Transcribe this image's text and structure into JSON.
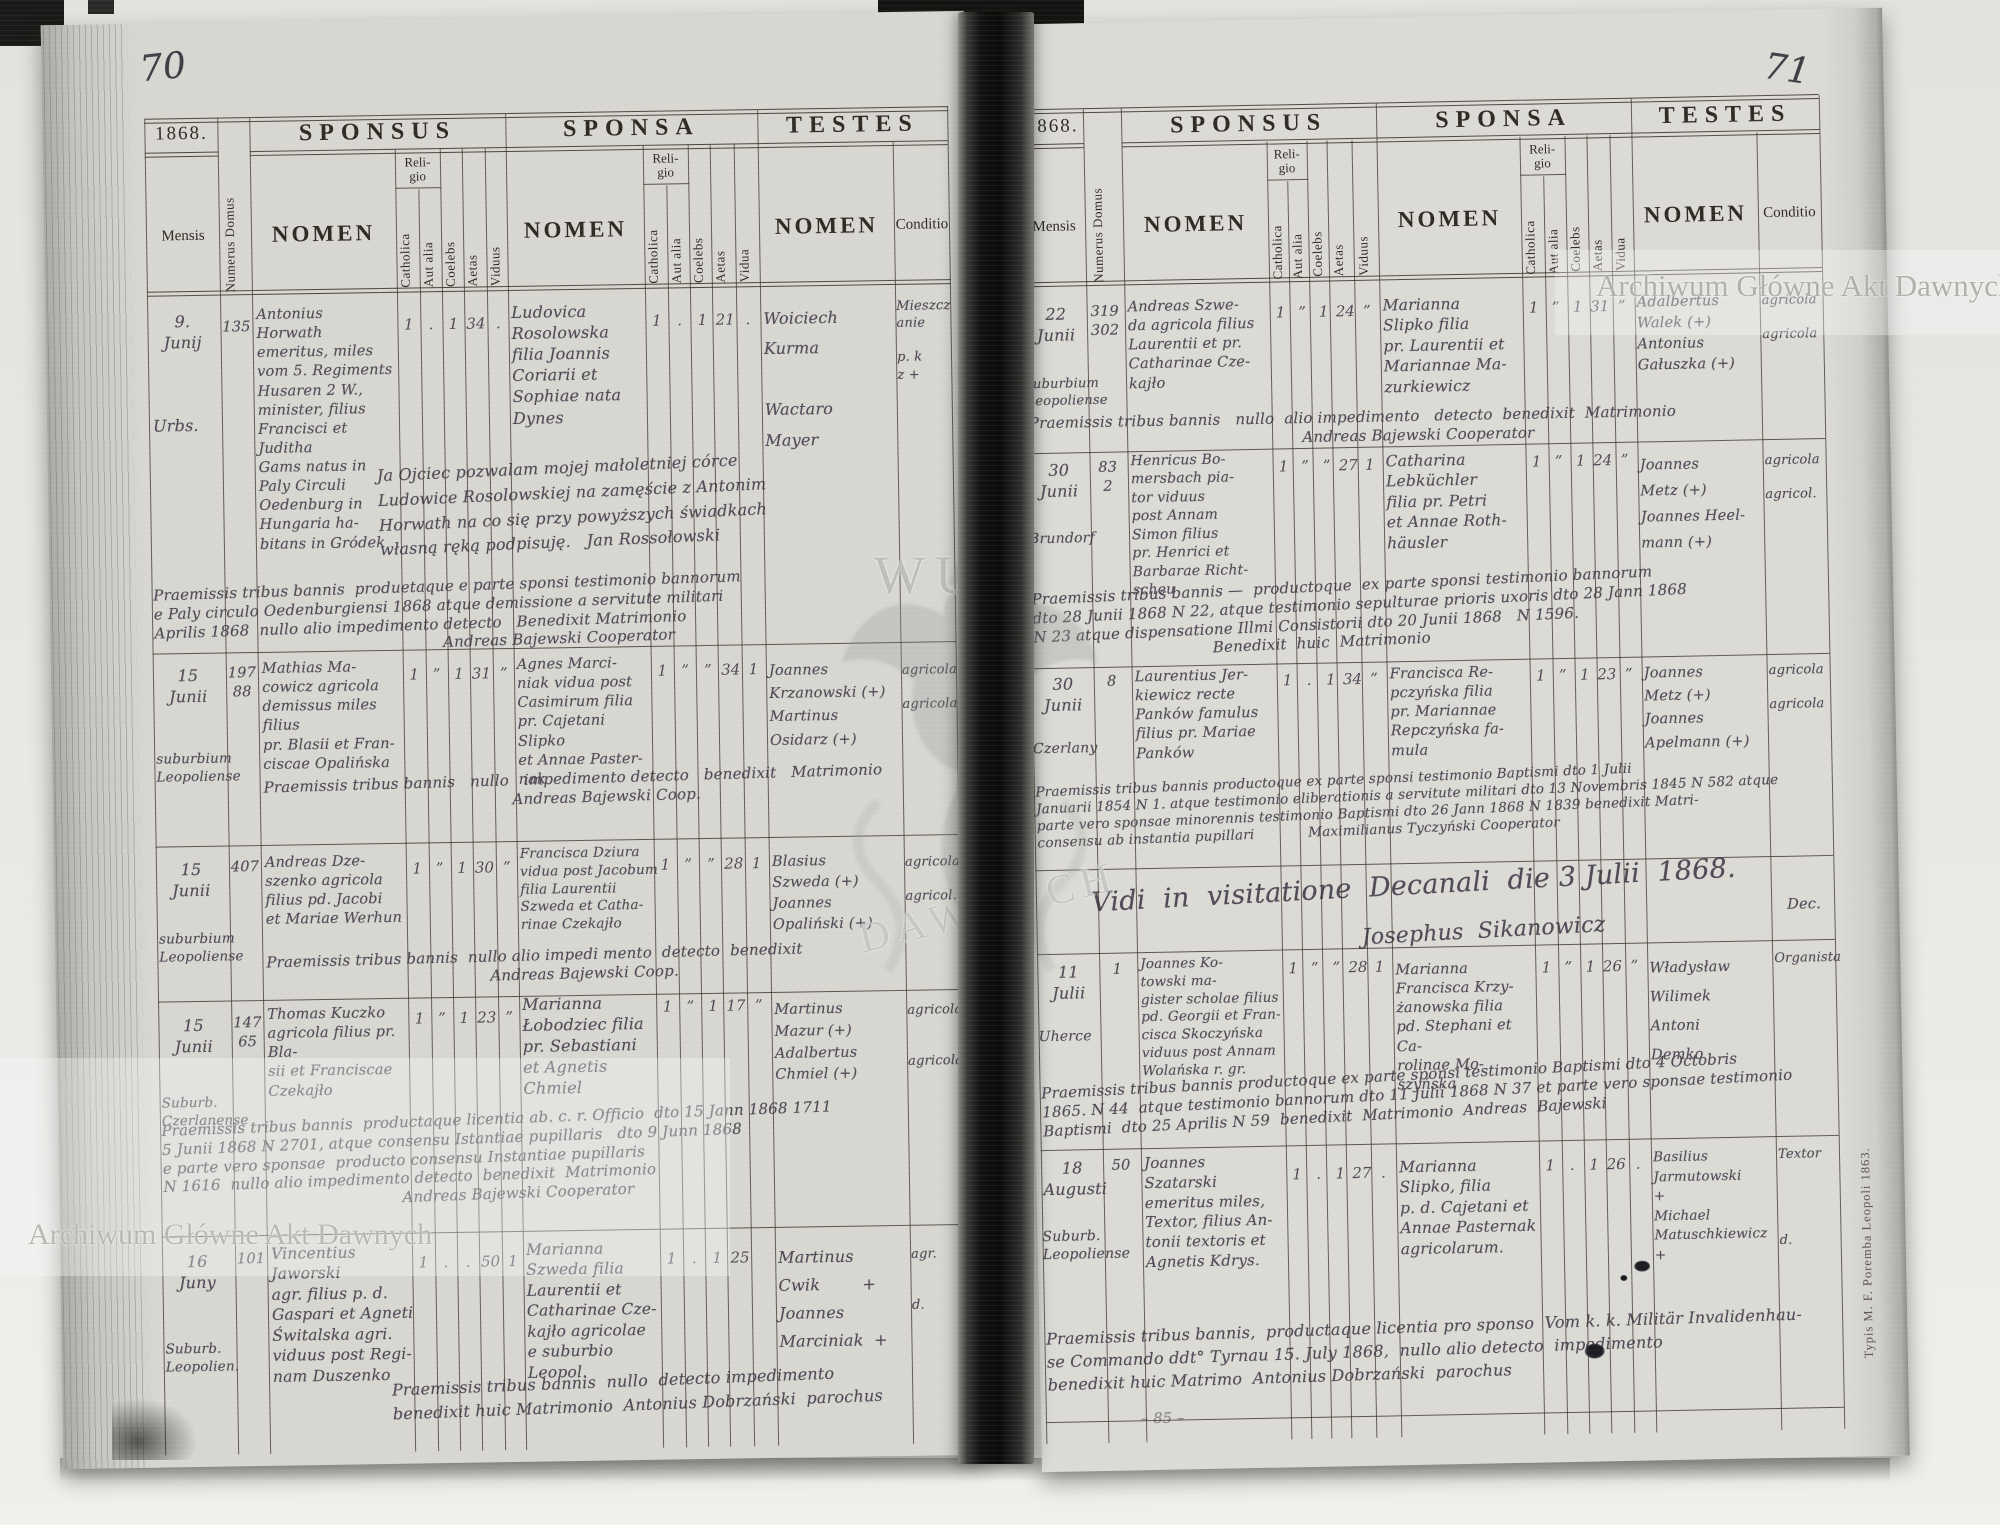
{
  "colors": {
    "paper_left": "#d7d6d1",
    "paper_right": "#dbdad5",
    "ink_print": "#2e2a24",
    "ink_hand": "#4f4a55",
    "binding": "#141312"
  },
  "watermarks": {
    "archive": "Archiwum Główne Akt Dawnych",
    "center_top": "WUM",
    "center_bottom": "DAWNYCH"
  },
  "imprint": "Typis M. F. Poremba Leopoli 1863.",
  "form": {
    "year": "1868.",
    "mensis": "Mensis",
    "numerus_domus": "Numerus Domus",
    "sponsus": "SPONSUS",
    "sponsa": "SPONSA",
    "testes": "TESTES",
    "nomen": "NOMEN",
    "religio": "Reli-\ngio",
    "catholica": "Catholica",
    "aut_alia": "Aut alia",
    "coelebs": "Coelebs",
    "aetas": "Aetas",
    "viduus": "Viduus",
    "vidua": "Vidua",
    "conditio": "Conditio"
  },
  "left": {
    "page_number": "70",
    "entries": [
      {
        "mensis": "9.\nJunij",
        "locus": "Urbs.",
        "numerus": "135",
        "sponsus": "Antonius\nHorwath\nemeritus, miles\nvom 5. Regiments\nHusaren 2 W.,\nminister, filius\nFrancisci et Juditha\nGams natus in\nPaly Circuli\nOedenburg in\nHungaria ha-\nbitans in Gródek",
        "sponsus_marks": [
          "1",
          ".",
          "1",
          "34",
          "."
        ],
        "sponsa": "Ludovica\nRosolowska\nfilia Joannis\nCoriarii et\nSophiae nata\nDynes",
        "sponsa_marks": [
          "1",
          ".",
          "1",
          "21",
          "."
        ],
        "testes": "Woiciech\nKurma\n\nWactaro\nMayer",
        "conditio": "Mieszcz\nanie\n\np. k\nz +",
        "note_pl": "Ja Ojciec pozwalam mojej małoletniej córce\nLudowice Rosolowskiej na zamęście z Antonim\nHorwath na co się przy powyższych świadkach\nwłasną ręką podpisuję.   Jan Rossołowski",
        "note": "Praemissis tribus bannis  produetaque e parte sponsi testimonio bannorum\ne Paly circulo Oedenburgiensi 1868 atque demissione a servitute militari\nAprilis 1868  nullo alio impedimento detecto   Benedixit Matrimonio\n                                                          Andreas Bajewski Cooperator"
      },
      {
        "mensis": "15\nJunii",
        "locus": "suburbium\nLeopoliense",
        "numerus": "197\n88",
        "sponsus": "Mathias Ma-\ncowicz agricola\ndemissus miles filius\npr. Blasii et Fran-\nciscae Opalińska",
        "sponsus_marks": [
          "1",
          "”",
          "1",
          "31",
          "”"
        ],
        "sponsa": "Agnes Marci-\nniak vidua post\nCasimirum filia\npr. Cajetani Slipko\net Annae Paster-\nnak",
        "sponsa_marks": [
          "1",
          "”",
          "”",
          "34",
          "1"
        ],
        "testes": "Joannes\nKrzanowski (+)\nMartinus\nOsidarz (+)",
        "conditio": "agricola\n\nagricola",
        "note": "Praemissis tribus bannis   nullo   impedimento detecto   benedixit   Matrimonio\n                                                  Andreas Bajewski Coop."
      },
      {
        "mensis": "15\nJunii",
        "locus": "suburbium\nLeopoliense",
        "numerus": "407",
        "sponsus": "Andreas Dze-\nszenko agricola\nfilius pd. Jacobi\net Mariae Werhun",
        "sponsus_marks": [
          "1",
          "”",
          "1",
          "30",
          "”"
        ],
        "sponsa": "Francisca Dziura\nvidua post Jacobum\nfilia Laurentii\nSzweda et Catha-\nrinae Czekajło",
        "sponsa_marks": [
          "1",
          "”",
          "”",
          "28",
          "1"
        ],
        "testes": "Blasius\nSzweda (+)\nJoannes\nOpaliński (+)",
        "conditio": "agricola\n\nagricol.",
        "note": "Praemissis tribus bannis  nullo alio impedi mento  detecto  benedixit\n                                             Andreas Bajewski Coop."
      },
      {
        "mensis": "15\nJunii",
        "locus": "Suburb.\nCzerlanense",
        "numerus": "147\n65",
        "sponsus": "Thomas Kuczko\nagricola filius pr. Bla-\nsii et Franciscae\nCzekajło",
        "sponsus_marks": [
          "1",
          "”",
          "1",
          "23",
          "”"
        ],
        "sponsa": "Marianna\nŁobodziec filia\npr. Sebastiani\net Agnetis Chmiel",
        "sponsa_marks": [
          "1",
          "”",
          "1",
          "17",
          "”"
        ],
        "testes": "Martinus\nMazur (+)\nAdalbertus\nChmiel (+)",
        "conditio": "agricola\n\n\nagricola",
        "note": "Praemissis tribus bannis  productaque licentia ab. c. r. Officio  dto 15 Jann 1868 1711\n5 Junii 1868 N 2701, atque consensu Istantiae pupillaris   dto 9 Junn 1868\ne parte vero sponsae  producto consensu Instantiae pupillaris\nN 1616  nullo alio impedimento detecto  benedixit  Matrimonio\n                                                Andreas Bajewski Cooperator"
      },
      {
        "mensis": "16\nJuny",
        "locus": "Suburb.\nLeopolien.",
        "numerus": "101",
        "sponsus": "Vincentius\nJaworski\nagr. filius p. d.\nGaspari et Agneti\nŚwitalska agri.\nviduus post Regi-\nnam Duszenko",
        "sponsus_marks": [
          "1",
          ".",
          ".",
          "50",
          "1"
        ],
        "sponsa": "Marianna\nSzweda filia\nLaurentii et\nCatharinae Cze-\nkajło agricolae\ne suburbio Leopol.",
        "sponsa_marks": [
          "1",
          ".",
          "1",
          "25",
          ""
        ],
        "testes": "Martinus\nCwik        +\nJoannes\nMarciniak  +",
        "conditio": "agr.\n\n\nd.",
        "note": "Praemissis tribus bannis  nullo  detecto impedimento\nbenedixit huic Matrimonio  Antonius Dobrzański  parochus"
      }
    ]
  },
  "right": {
    "page_number": "71",
    "vidi": "Vidi  in  visitatione  Decanali  die 3 Julii  1868.",
    "vidi_signature": "Josephus  Sikanowicz",
    "vidi_dec": "Dec.",
    "pencil_mark": "– 85 –",
    "entries": [
      {
        "mensis": "22\nJunii",
        "locus": "suburbium\nLeopoliense",
        "numerus": "319\n302",
        "sponsus": "Andreas Szwe-\nda agricola filius\nLaurentii et pr.\nCatharinae Cze-\nkajło",
        "sponsus_marks": [
          "1",
          "”",
          "1",
          "24",
          "”"
        ],
        "sponsa": "Marianna\nSlipko filia\npr. Laurentii et\nMariannae Ma-\nzurkiewicz",
        "sponsa_marks": [
          "1",
          "”",
          "1",
          "31",
          "”"
        ],
        "testes": "Adalbertus\nWalek (+)\nAntonius\nGałuszka (+)",
        "conditio": "agricola\n\nagricola",
        "note": "Praemissis tribus bannis   nullo  alio impedimento   detecto  benedixit  Matrimonio\n                                                       Andreas Bajewski Cooperator"
      },
      {
        "mensis": "30\nJunii",
        "locus": "Brundorf",
        "numerus": "83\n2",
        "sponsus": "Henricus Bo-\nmersbach pia-\ntor viduus\npost Annam\nSimon filius\npr. Henrici et\nBarbarae Richt-\nscheu",
        "sponsus_marks": [
          "1",
          "”",
          "”",
          "27",
          "1"
        ],
        "sponsa": "Catharina\nLebküchler\nfilia pr. Petri\net Annae Roth-\nhäusler",
        "sponsa_marks": [
          "1",
          "”",
          "1",
          "24",
          "”"
        ],
        "testes": "Joannes\nMetz (+)\nJoannes Heel-\nmann (+)",
        "conditio": "agricola\n\nagricol.",
        "note": "Praemissis tribus bannis —  productoque  ex parte sponsi testimonio bannorum\ndto 28 Junii 1868 N 22, atque testimonio sepulturae prioris uxoris dto 28 Jann 1868\nN 23 atque dispensatione Illmi Consistorii dto 20 Junii 1868   N 1596.\n                                    Benedixit  huic  Matrimonio"
      },
      {
        "mensis": "30\nJunii",
        "locus": "Czerlany",
        "numerus": "8",
        "sponsus": "Laurentius Jer-\nkiewicz recte\nPanków famulus\nfilius pr. Mariae\nPanków",
        "sponsus_marks": [
          "1",
          ".",
          "1",
          "34",
          "”"
        ],
        "sponsa": "Francisca Re-\npczyńska filia\npr. Mariannae\nRepczyńska fa-\nmula",
        "sponsa_marks": [
          "1",
          "”",
          "1",
          "23",
          "”"
        ],
        "testes": "Joannes\nMetz (+)\nJoannes\nApelmann (+)",
        "conditio": "agricola\n\nagricola",
        "note": "Praemissis tribus bannis productoque ex parte sponsi testimonio Baptismi dto 1 Julii\nJanuarii 1854 N 1. atque testimonio eliberationis a servitute militari dto 13 Novembris 1845 N 582 atque\nparte vero sponsae minorennis testimonio Baptismi dto 26 Jann 1868 N 1839 benedixit Matri-\nconsensu ab instantia pupillari            Maximilianus Tyczyński Cooperator"
      },
      {
        "mensis": "11\nJulii",
        "locus": "Uherce",
        "numerus": "1",
        "sponsus": "Joannes Ko-\ntowski ma-\ngister scholae filius\npd. Georgii et Fran-\ncisca Skoczyńska\nviduus post Annam\nWolańska r. gr.",
        "sponsus_marks": [
          "1",
          "”",
          "”",
          "28",
          "1"
        ],
        "sponsa": "Marianna\nFrancisca Krzy-\nżanowska filia\npd. Stephani et Ca-\nrolinae Mo-\nszyńska",
        "sponsa_marks": [
          "1",
          "”",
          "1",
          "26",
          "”"
        ],
        "testes": "Władysław\nWilimek\nAntoni\nDemko",
        "conditio": "Organista",
        "note": "Praemissis tribus bannis productoque ex parte sponsi testimonio Baptismi dto 4 Octobris\n1865. N 44  atque testimonio bannorum dto 11 Julii 1868 N 37 et parte vero sponsae testimonio\nBaptismi  dto 25 Aprilis N 59  benedixit  Matrimonio  Andreas  Bajewski"
      },
      {
        "mensis": "18\nAugusti",
        "locus": "Suburb.\nLeopoliense",
        "numerus": "50",
        "sponsus": "Joannes\nSzatarski\nemeritus miles,\nTextor, filius An-\ntonii textoris et\nAgnetis Kdrys.",
        "sponsus_marks": [
          "1",
          ".",
          "1",
          "27",
          "."
        ],
        "sponsa": "Marianna\nSlipko, filia\np. d. Cajetani et\nAnnae Pasternak\nagricolarum.",
        "sponsa_marks": [
          "1",
          ".",
          "1",
          "26",
          "."
        ],
        "testes": "Basilius\nJarmutowski\n+\nMichael\nMatuschkiewicz\n+",
        "conditio": "Textor\n\n\n\n\nd.",
        "note": "Praemissis tribus bannis,  productaque licentia pro sponso  Vom k. k. Militär Invalidenhau-\nse Commando ddt° Tyrnau 15. July 1868,  nullo alio detecto  impedimento\nbenedixit huic Matrimo  Antonius Dobrzański  parochus"
      }
    ]
  }
}
